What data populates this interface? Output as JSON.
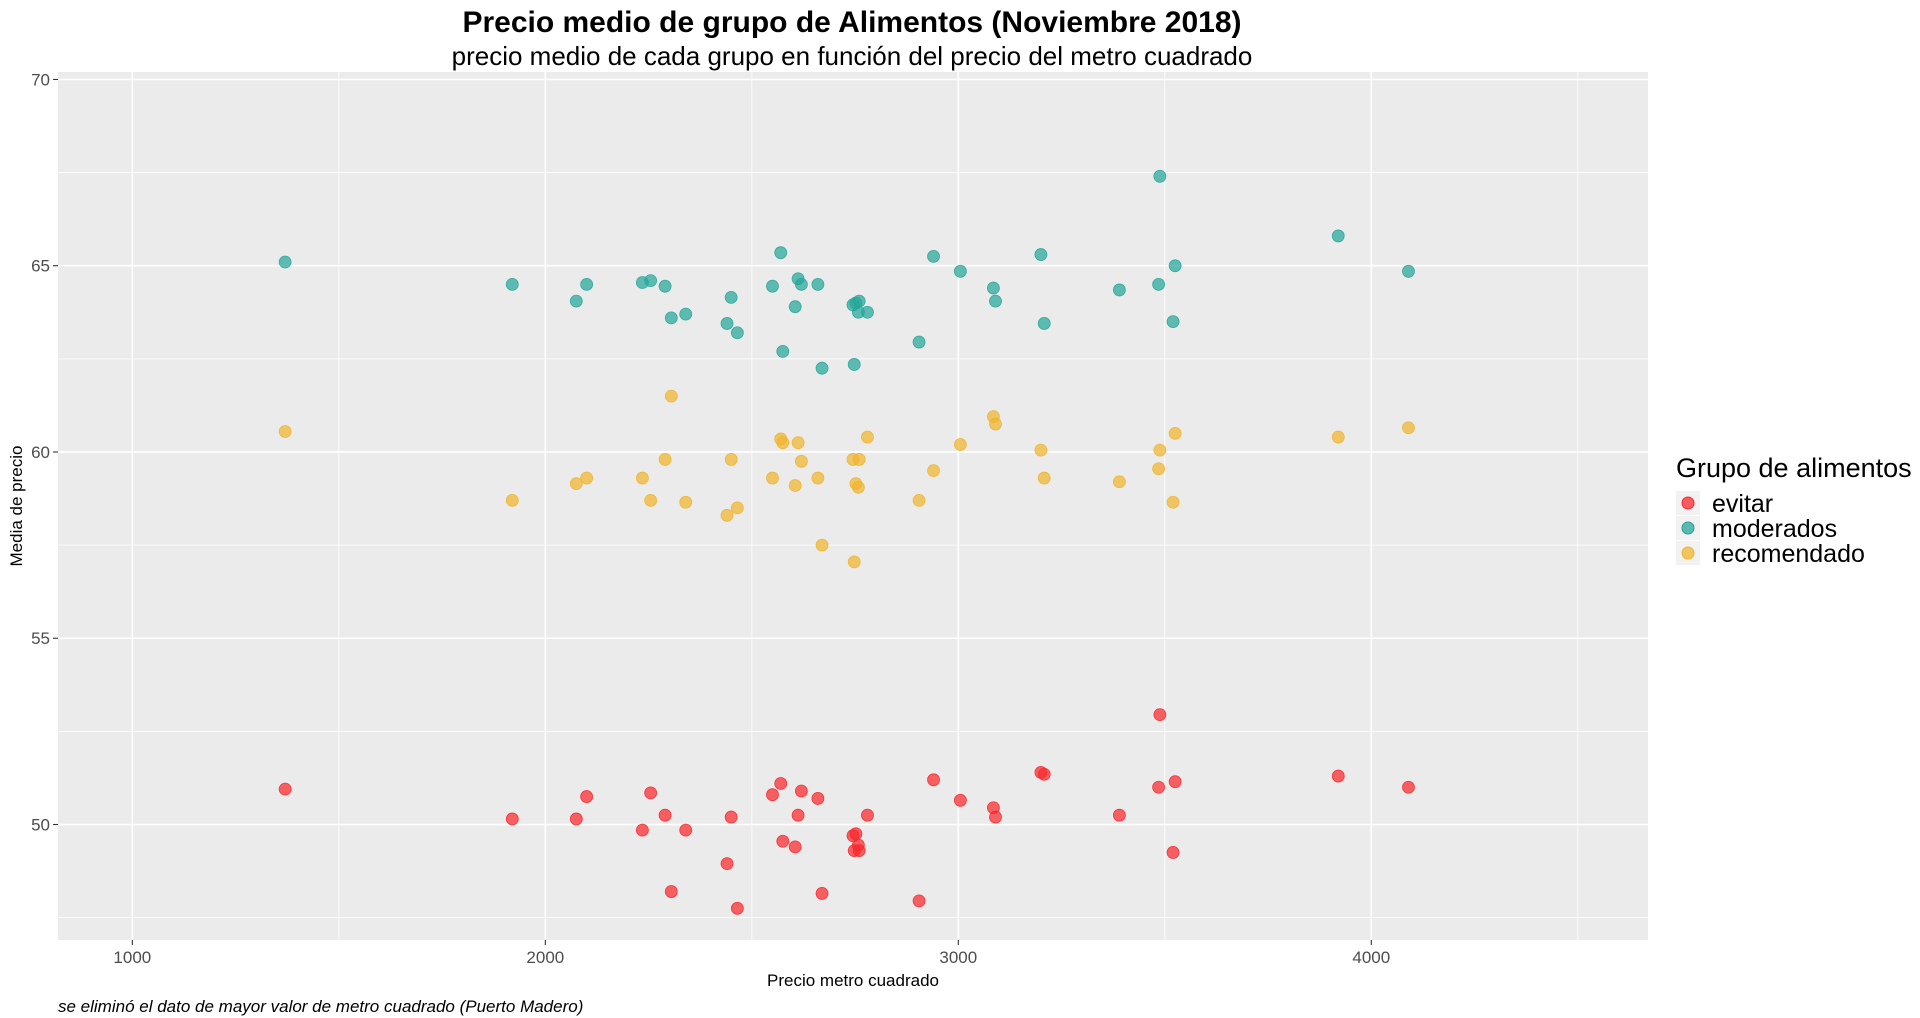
{
  "chart_data": {
    "type": "scatter",
    "title": "Precio medio de grupo de Alimentos (Noviembre 2018)",
    "subtitle": "precio medio de cada grupo en función del precio del metro cuadrado",
    "xlabel": "Precio metro cuadrado",
    "ylabel": "Media de precio",
    "caption": "se eliminó el dato de mayor valor de metro cuadrado (Puerto Madero)",
    "xlim": [
      820,
      4670
    ],
    "ylim": [
      46.9,
      70.2
    ],
    "x_ticks": [
      1000,
      2000,
      3000,
      4000
    ],
    "y_ticks": [
      50,
      55,
      60,
      65,
      70
    ],
    "grid": true,
    "panel_background": "#ebebeb",
    "legend": {
      "title": "Grupo de alimentos",
      "position": "right"
    },
    "series": [
      {
        "name": "evitar",
        "color": "#f8282d",
        "points": [
          [
            1370,
            50.95
          ],
          [
            1920,
            50.15
          ],
          [
            2075,
            50.15
          ],
          [
            2100,
            50.75
          ],
          [
            2235,
            49.85
          ],
          [
            2255,
            50.85
          ],
          [
            2290,
            50.25
          ],
          [
            2305,
            48.2
          ],
          [
            2340,
            49.85
          ],
          [
            2440,
            48.95
          ],
          [
            2450,
            50.2
          ],
          [
            2465,
            47.75
          ],
          [
            2550,
            50.8
          ],
          [
            2570,
            51.1
          ],
          [
            2575,
            49.55
          ],
          [
            2605,
            49.4
          ],
          [
            2612,
            50.25
          ],
          [
            2620,
            50.9
          ],
          [
            2660,
            50.7
          ],
          [
            2670,
            48.15
          ],
          [
            2745,
            49.7
          ],
          [
            2748,
            49.3
          ],
          [
            2752,
            49.75
          ],
          [
            2758,
            49.45
          ],
          [
            2760,
            49.3
          ],
          [
            2780,
            50.25
          ],
          [
            2905,
            47.95
          ],
          [
            2940,
            51.2
          ],
          [
            3005,
            50.65
          ],
          [
            3085,
            50.45
          ],
          [
            3090,
            50.2
          ],
          [
            3200,
            51.4
          ],
          [
            3208,
            51.35
          ],
          [
            3390,
            50.25
          ],
          [
            3485,
            51.0
          ],
          [
            3488,
            52.95
          ],
          [
            3520,
            49.25
          ],
          [
            3525,
            51.15
          ],
          [
            3920,
            51.3
          ],
          [
            4090,
            51.0
          ]
        ]
      },
      {
        "name": "moderados",
        "color": "#26a69a",
        "points": [
          [
            1370,
            65.1
          ],
          [
            1920,
            64.5
          ],
          [
            2075,
            64.05
          ],
          [
            2100,
            64.5
          ],
          [
            2235,
            64.55
          ],
          [
            2255,
            64.6
          ],
          [
            2290,
            64.45
          ],
          [
            2305,
            63.6
          ],
          [
            2340,
            63.7
          ],
          [
            2440,
            63.45
          ],
          [
            2450,
            64.15
          ],
          [
            2465,
            63.2
          ],
          [
            2550,
            64.45
          ],
          [
            2570,
            65.35
          ],
          [
            2575,
            62.7
          ],
          [
            2605,
            63.9
          ],
          [
            2612,
            64.65
          ],
          [
            2620,
            64.5
          ],
          [
            2660,
            64.5
          ],
          [
            2670,
            62.25
          ],
          [
            2745,
            63.95
          ],
          [
            2748,
            62.35
          ],
          [
            2752,
            64.0
          ],
          [
            2758,
            63.75
          ],
          [
            2760,
            64.05
          ],
          [
            2780,
            63.75
          ],
          [
            2905,
            62.95
          ],
          [
            2940,
            65.25
          ],
          [
            3005,
            64.85
          ],
          [
            3085,
            64.4
          ],
          [
            3090,
            64.05
          ],
          [
            3200,
            65.3
          ],
          [
            3208,
            63.45
          ],
          [
            3390,
            64.35
          ],
          [
            3485,
            64.5
          ],
          [
            3488,
            67.4
          ],
          [
            3520,
            63.5
          ],
          [
            3525,
            65.0
          ],
          [
            3920,
            65.8
          ],
          [
            4090,
            64.85
          ]
        ]
      },
      {
        "name": "recomendado",
        "color": "#f0b42c",
        "points": [
          [
            1370,
            60.55
          ],
          [
            1920,
            58.7
          ],
          [
            2075,
            59.15
          ],
          [
            2100,
            59.3
          ],
          [
            2235,
            59.3
          ],
          [
            2255,
            58.7
          ],
          [
            2290,
            59.8
          ],
          [
            2305,
            61.5
          ],
          [
            2340,
            58.65
          ],
          [
            2440,
            58.3
          ],
          [
            2450,
            59.8
          ],
          [
            2465,
            58.5
          ],
          [
            2550,
            59.3
          ],
          [
            2570,
            60.35
          ],
          [
            2575,
            60.25
          ],
          [
            2605,
            59.1
          ],
          [
            2612,
            60.25
          ],
          [
            2620,
            59.75
          ],
          [
            2660,
            59.3
          ],
          [
            2670,
            57.5
          ],
          [
            2745,
            59.8
          ],
          [
            2748,
            57.05
          ],
          [
            2752,
            59.15
          ],
          [
            2758,
            59.05
          ],
          [
            2760,
            59.8
          ],
          [
            2780,
            60.4
          ],
          [
            2905,
            58.7
          ],
          [
            2940,
            59.5
          ],
          [
            3005,
            60.2
          ],
          [
            3085,
            60.95
          ],
          [
            3090,
            60.75
          ],
          [
            3200,
            60.05
          ],
          [
            3208,
            59.3
          ],
          [
            3390,
            59.2
          ],
          [
            3485,
            59.55
          ],
          [
            3488,
            60.05
          ],
          [
            3520,
            58.65
          ],
          [
            3525,
            60.5
          ],
          [
            3920,
            60.4
          ],
          [
            4090,
            60.65
          ]
        ]
      }
    ]
  }
}
